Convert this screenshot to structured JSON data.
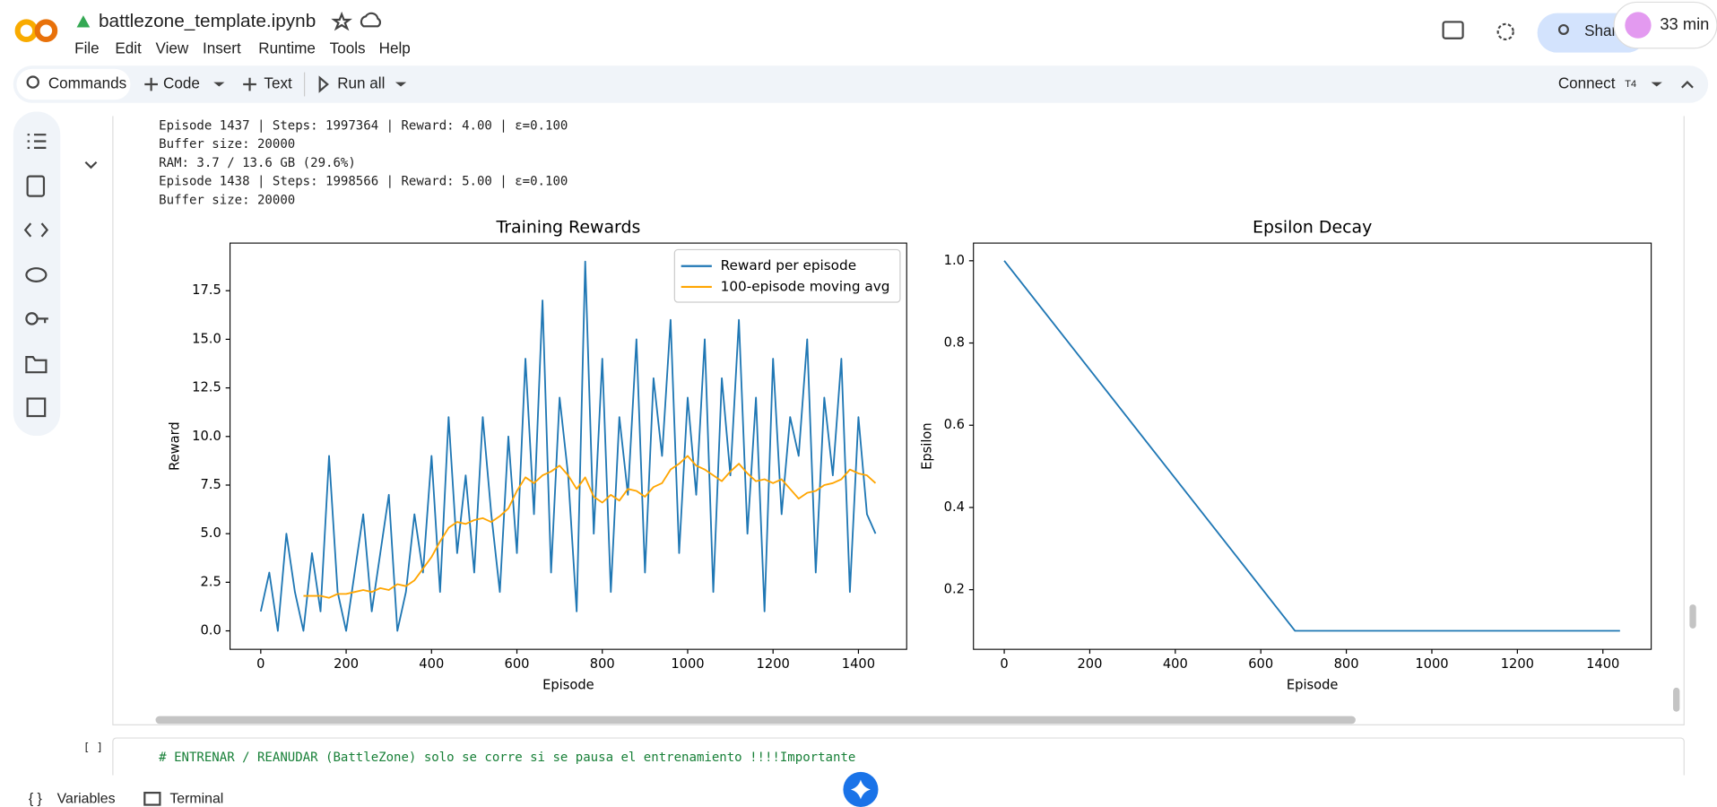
{
  "header": {
    "filename": "battlezone_template.ipynb",
    "menu": [
      "File",
      "Edit",
      "View",
      "Insert",
      "Runtime",
      "Tools",
      "Help"
    ],
    "share": "Shar",
    "timer": "33 min"
  },
  "toolbar": {
    "commands": "Commands",
    "code": "Code",
    "text": "Text",
    "run_all": "Run all",
    "connect": "Connect",
    "runtime": "T4"
  },
  "output_lines": [
    "Episode 1437 | Steps: 1997364 | Reward: 4.00 | ε=0.100",
    "Buffer size: 20000",
    "RAM: 3.7 / 13.6 GB (29.6%)",
    "Episode 1438 | Steps: 1998566 | Reward: 5.00 | ε=0.100",
    "Buffer size: 20000"
  ],
  "chart_data": [
    {
      "type": "line",
      "title": "Training Rewards",
      "xlabel": "Episode",
      "ylabel": "Reward",
      "xlim": [
        -72,
        1513
      ],
      "ylim": [
        -0.95,
        19.95
      ],
      "xticks": [
        0,
        200,
        400,
        600,
        800,
        1000,
        1200,
        1400
      ],
      "yticks": [
        {
          "value": 0,
          "label": "0.0"
        },
        2.5,
        {
          "value": 5,
          "label": "5.0"
        },
        7.5,
        {
          "value": 10,
          "label": "10.0"
        },
        12.5,
        {
          "value": 15,
          "label": "15.0"
        },
        17.5
      ],
      "legend": "upper right",
      "x": [
        0,
        20,
        40,
        60,
        80,
        100,
        120,
        140,
        160,
        180,
        200,
        220,
        240,
        260,
        280,
        300,
        320,
        340,
        360,
        380,
        400,
        420,
        440,
        460,
        480,
        500,
        520,
        540,
        560,
        580,
        600,
        620,
        640,
        660,
        680,
        700,
        720,
        740,
        760,
        780,
        800,
        820,
        840,
        860,
        880,
        900,
        920,
        940,
        960,
        980,
        1000,
        1020,
        1040,
        1060,
        1080,
        1100,
        1120,
        1140,
        1160,
        1180,
        1200,
        1220,
        1240,
        1260,
        1280,
        1300,
        1320,
        1340,
        1360,
        1380,
        1400,
        1420,
        1440
      ],
      "series": [
        {
          "name": "Reward per episode",
          "color": "#1f77b4",
          "values": [
            1,
            3,
            0,
            5,
            2,
            0,
            4,
            1,
            9,
            2,
            0,
            3,
            6,
            1,
            4,
            7,
            0,
            2,
            6,
            3,
            9,
            2,
            11,
            4,
            8,
            3,
            11,
            6,
            2,
            10,
            4,
            14,
            6,
            17,
            3,
            12,
            8,
            1,
            19,
            5,
            14,
            2,
            11,
            7,
            15,
            3,
            13,
            9,
            16,
            4,
            12,
            7,
            15,
            2,
            13,
            8,
            16,
            5,
            12,
            1,
            14,
            6,
            11,
            9,
            15,
            3,
            12,
            8,
            14,
            2,
            11,
            6,
            5
          ]
        },
        {
          "name": "100-episode moving avg",
          "color": "#ffa500",
          "values": [
            null,
            null,
            null,
            null,
            null,
            1.8,
            1.8,
            1.8,
            1.7,
            1.9,
            1.9,
            2.0,
            2.1,
            2.0,
            2.2,
            2.1,
            2.4,
            2.3,
            2.6,
            3.2,
            3.8,
            4.6,
            5.3,
            5.6,
            5.5,
            5.7,
            5.8,
            5.6,
            5.9,
            6.3,
            7.2,
            7.9,
            7.6,
            8.0,
            8.2,
            8.5,
            8.0,
            7.3,
            7.9,
            6.9,
            6.6,
            7.0,
            6.7,
            7.3,
            7.2,
            6.9,
            7.4,
            7.6,
            8.3,
            8.6,
            9.0,
            8.5,
            8.3,
            8.0,
            7.7,
            8.2,
            8.6,
            8.1,
            7.7,
            7.8,
            7.6,
            7.8,
            7.3,
            6.8,
            7.1,
            7.2,
            7.5,
            7.6,
            7.8,
            8.3,
            8.1,
            8.0,
            7.6
          ]
        }
      ]
    },
    {
      "type": "line",
      "title": "Epsilon Decay",
      "xlabel": "Episode",
      "ylabel": "Epsilon",
      "xlim": [
        -72,
        1513
      ],
      "ylim": [
        0.055,
        1.043
      ],
      "xticks": [
        0,
        200,
        400,
        600,
        800,
        1000,
        1200,
        1400
      ],
      "yticks": [
        0.2,
        0.4,
        0.6,
        0.8,
        {
          "value": 1,
          "label": "1.0"
        }
      ],
      "x": [
        0,
        680,
        1440
      ],
      "series": [
        {
          "color": "#1f77b4",
          "values": [
            1.0,
            0.1,
            0.1
          ]
        }
      ]
    }
  ],
  "next_cell": {
    "bracket": "[ ]",
    "code": "# ENTRENAR / REANUDAR (BattleZone) solo se corre si se pausa el entrenamiento !!!!Importante"
  },
  "footer": {
    "variables": "Variables",
    "terminal": "Terminal"
  }
}
